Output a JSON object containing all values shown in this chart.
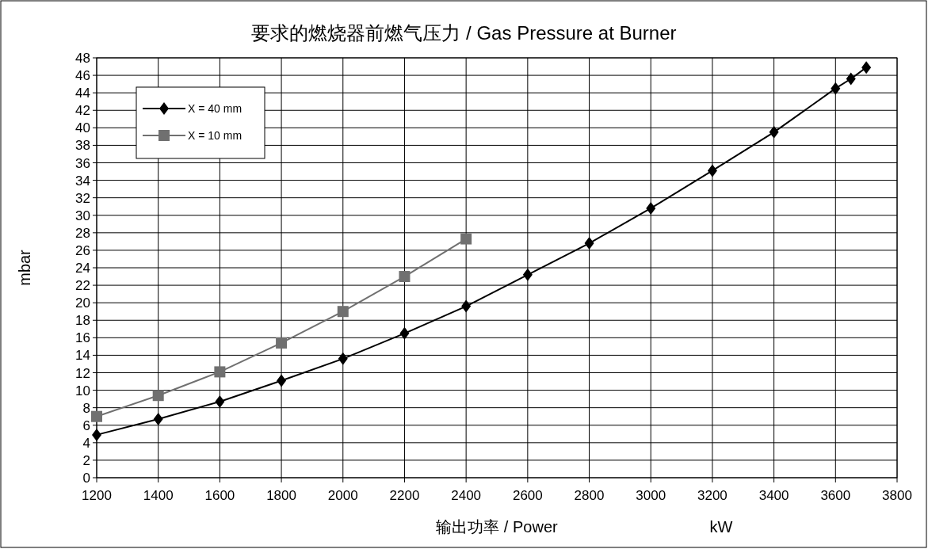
{
  "chart_data": {
    "type": "line",
    "title": "要求的燃烧器前燃气压力 / Gas Pressure at Burner",
    "xlabel": "输出功率 / Power",
    "ylabel": "mbar",
    "annotations": [
      "kW"
    ],
    "xlim": [
      1200,
      3800
    ],
    "xticks": [
      1200,
      1400,
      1600,
      1800,
      2000,
      2200,
      2400,
      2600,
      2800,
      3000,
      3200,
      3400,
      3600,
      3800
    ],
    "ylim": [
      0,
      48
    ],
    "yticks": [
      0,
      2,
      4,
      6,
      8,
      10,
      12,
      14,
      16,
      18,
      20,
      22,
      24,
      26,
      28,
      30,
      32,
      34,
      36,
      38,
      40,
      42,
      44,
      46,
      48
    ],
    "grid": true,
    "legend": "top left",
    "line_style": "solid",
    "series": [
      {
        "name": "X = 40 mm",
        "color": "#000000",
        "marker": "diamond",
        "x": [
          1200,
          1400,
          1600,
          1800,
          2000,
          2200,
          2400,
          2600,
          2800,
          3000,
          3200,
          3400,
          3600,
          3650,
          3700
        ],
        "values": [
          4.9,
          6.7,
          8.7,
          11.1,
          13.6,
          16.5,
          19.6,
          23.2,
          26.8,
          30.8,
          35.1,
          39.5,
          44.5,
          45.6,
          46.9
        ]
      },
      {
        "name": "X = 10 mm",
        "color": "#707070",
        "marker": "square",
        "x": [
          1200,
          1400,
          1600,
          1800,
          2000,
          2200,
          2400
        ],
        "values": [
          7.0,
          9.4,
          12.1,
          15.4,
          19.0,
          23.0,
          27.3
        ]
      }
    ]
  }
}
